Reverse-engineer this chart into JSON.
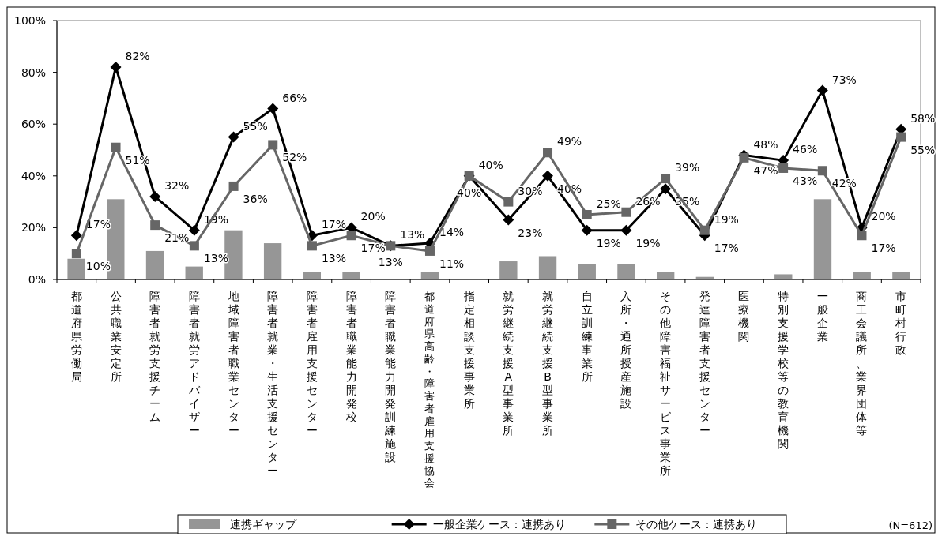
{
  "chart_data": {
    "type": "bar",
    "categories": [
      "都道府県労働局",
      "公共職業安定所",
      "障害者就労支援チーム",
      "障害者就労アドバイザー",
      "地域障害者職業センター",
      "障害者就業・生活支援センター",
      "障害者雇用支援センター",
      "障害者職業能力開発校",
      "障害者職業能力開発訓練施設",
      "都道府県高齢・障害者雇用支援協会",
      "指定相談支援事業所",
      "就労継続支援A型事業所",
      "就労継続支援B型事業所",
      "自立訓練事業所",
      "入所・通所授産施設",
      "その他障害福祉サービス事業所",
      "発達障害者支援センター",
      "医療機関",
      "特別支援学校等の教育機関",
      "一般企業",
      "商工会議所、業界団体等",
      "市町村行政"
    ],
    "series": [
      {
        "name": "連携ギャップ",
        "color": "#969696",
        "values": [
          8,
          31,
          11,
          5,
          19,
          14,
          3,
          3,
          0,
          3,
          0,
          7,
          9,
          6,
          6,
          3,
          1,
          0,
          2,
          31,
          3,
          3
        ]
      },
      {
        "name": "一般企業ケース：連携あり",
        "type": "line",
        "color": "#000000",
        "marker": "diamond",
        "values": [
          17,
          82,
          32,
          19,
          55,
          66,
          17,
          20,
          13,
          14,
          40,
          23,
          40,
          19,
          19,
          35,
          17,
          48,
          46,
          73,
          20,
          58
        ],
        "value_labels": [
          "17%",
          "82%",
          "32%",
          "19%",
          "55%",
          "66%",
          "17%",
          "20%",
          "13%",
          "14%",
          "40%",
          "23%",
          "40%",
          "19%",
          "19%",
          "35%",
          "17%",
          "48%",
          "46%",
          "73%",
          "20%",
          "58%"
        ]
      },
      {
        "name": "その他ケース：連携あり",
        "type": "line",
        "color": "#666666",
        "marker": "square",
        "values": [
          10,
          51,
          21,
          13,
          36,
          52,
          13,
          17,
          13,
          11,
          40,
          30,
          49,
          25,
          26,
          39,
          19,
          47,
          43,
          42,
          17,
          55
        ],
        "value_labels": [
          "10%",
          "51%",
          "21%",
          "13%",
          "36%",
          "52%",
          "13%",
          "17%",
          "13%",
          "11%",
          "40%",
          "30%",
          "49%",
          "25%",
          "26%",
          "39%",
          "19%",
          "47%",
          "43%",
          "42%",
          "17%",
          "55%"
        ]
      }
    ],
    "ylim": [
      0,
      100
    ],
    "yticks": [
      {
        "value": 0,
        "label": "0%"
      },
      {
        "value": 20,
        "label": "20%"
      },
      {
        "value": 40,
        "label": "40%"
      },
      {
        "value": 60,
        "label": "60%"
      },
      {
        "value": 80,
        "label": "80%"
      },
      {
        "value": 100,
        "label": "100%"
      }
    ],
    "legend": "bottom",
    "annotations": [
      "(N=612)"
    ]
  }
}
